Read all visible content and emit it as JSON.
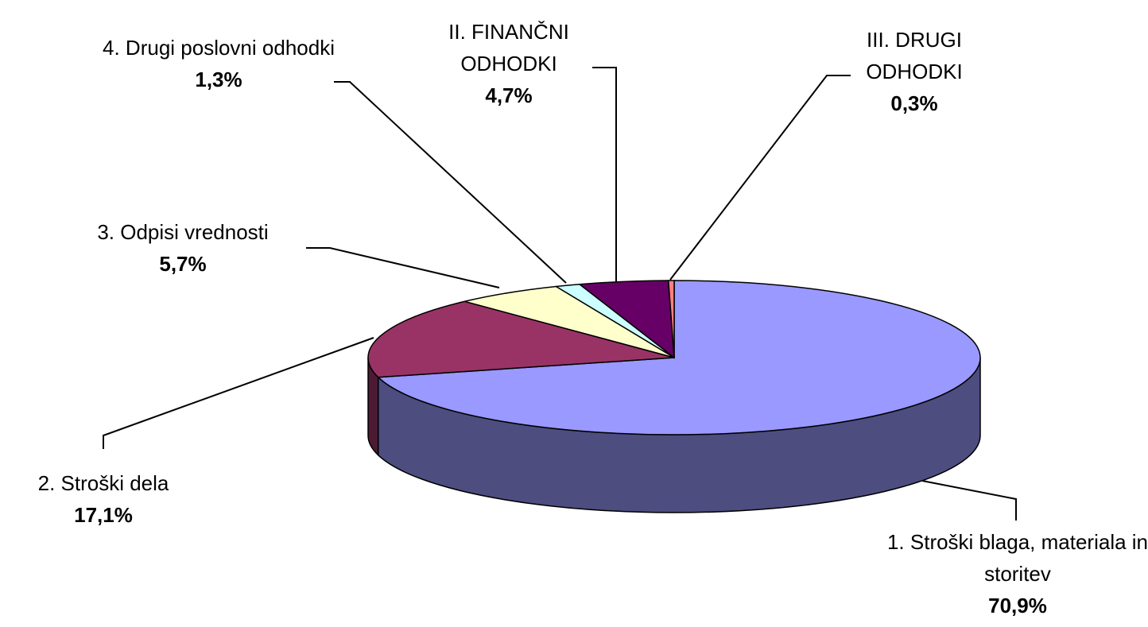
{
  "chart_data": {
    "type": "pie3d",
    "categories": [
      "1. Stroški blaga, materiala in storitev",
      "2. Stroški dela",
      "3. Odpisi vrednosti",
      "4. Drugi poslovni odhodki",
      "II. FINANČNI ODHODKI",
      "III. DRUGI ODHODKI"
    ],
    "values": [
      70.9,
      17.1,
      5.7,
      1.3,
      4.7,
      0.3
    ],
    "value_labels": [
      "70,9%",
      "17,1%",
      "5,7%",
      "1,3%",
      "4,7%",
      "0,3%"
    ],
    "colors": [
      "#9999ff",
      "#993366",
      "#ffffcc",
      "#ccffff",
      "#660066",
      "#ff8080"
    ]
  }
}
